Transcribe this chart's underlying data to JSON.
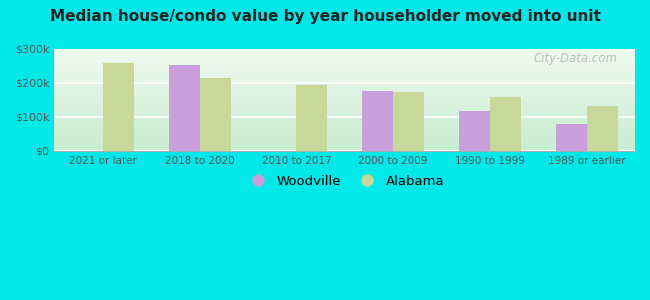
{
  "title": "Median house/condo value by year householder moved into unit",
  "categories": [
    "2021 or later",
    "2018 to 2020",
    "2010 to 2017",
    "2000 to 2009",
    "1990 to 1999",
    "1989 or earlier"
  ],
  "woodville": [
    null,
    252000,
    null,
    175000,
    118000,
    78000
  ],
  "alabama": [
    258000,
    215000,
    193000,
    172000,
    158000,
    133000
  ],
  "woodville_color": "#c9a0dc",
  "alabama_color": "#c8d89a",
  "ylim": [
    0,
    300000
  ],
  "yticks": [
    0,
    100000,
    200000,
    300000
  ],
  "ytick_labels": [
    "$0",
    "$100k",
    "$200k",
    "$300k"
  ],
  "bar_width": 0.32,
  "watermark": "City-Data.com",
  "legend_woodville": "Woodville",
  "legend_alabama": "Alabama",
  "outer_bg": "#00e8e8",
  "plot_bg_top": "#f5fdf5",
  "plot_bg_bottom": "#d8f2e0"
}
